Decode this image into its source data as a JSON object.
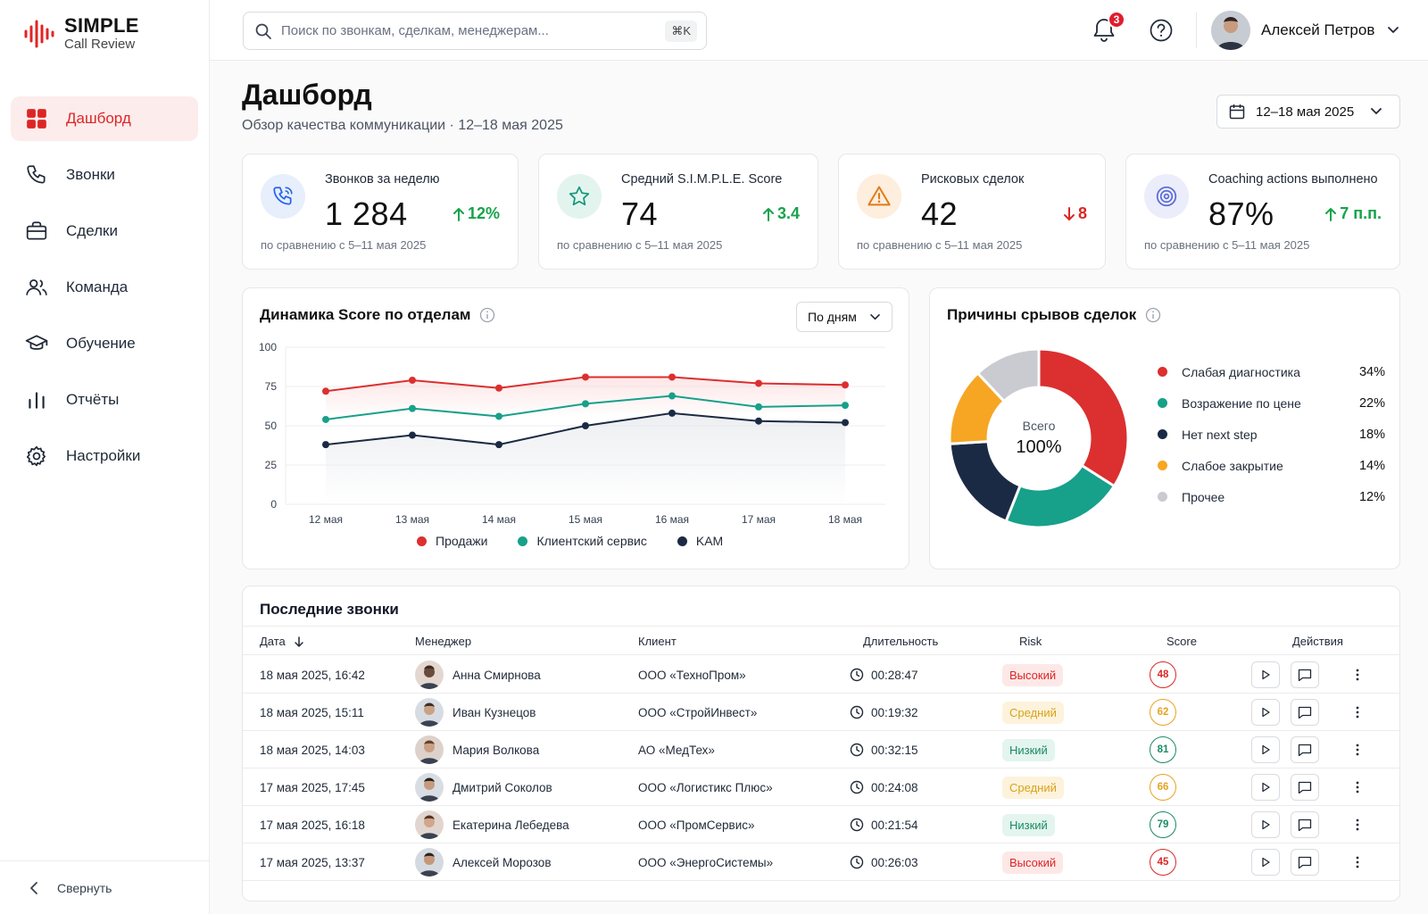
{
  "brand": {
    "name": "SIMPLE",
    "tagline": "Call Review"
  },
  "sidebar": {
    "items": [
      {
        "label": "Дашборд",
        "icon": "grid-icon",
        "active": true
      },
      {
        "label": "Звонки",
        "icon": "phone-icon"
      },
      {
        "label": "Сделки",
        "icon": "briefcase-icon"
      },
      {
        "label": "Команда",
        "icon": "team-icon"
      },
      {
        "label": "Обучение",
        "icon": "graduation-cap-icon"
      },
      {
        "label": "Отчёты",
        "icon": "bar-chart-icon"
      },
      {
        "label": "Настройки",
        "icon": "gear-icon"
      }
    ],
    "collapse_label": "Свернуть"
  },
  "topbar": {
    "search_placeholder": "Поиск по звонкам, сделкам, менеджерам...",
    "search_shortcut": "⌘K",
    "notifications_count": "3",
    "user_name": "Алексей Петров"
  },
  "page": {
    "title": "Дашборд",
    "subtitle": "Обзор качества коммуникации · 12–18 мая 2025",
    "date_range": "12–18 мая 2025"
  },
  "kpis": [
    {
      "label": "Звонков за неделю",
      "value": "1 284",
      "delta": "12%",
      "direction": "up",
      "compare": "по сравнению с 5–11 мая 2025",
      "icon": "phone-icon",
      "color": "#2563eb",
      "bg": "#e7effc"
    },
    {
      "label": "Средний S.I.M.P.L.E. Score",
      "value": "74",
      "delta": "3.4",
      "direction": "up",
      "compare": "по сравнению с 5–11 мая 2025",
      "icon": "star-icon",
      "color": "#16987a",
      "bg": "#e3f4ef"
    },
    {
      "label": "Рисковых сделок",
      "value": "42",
      "delta": "8",
      "direction": "down",
      "compare": "по сравнению с 5–11 мая 2025",
      "icon": "warning-icon",
      "color": "#e07b1a",
      "bg": "#fdeede"
    },
    {
      "label": "Coaching actions выполнено",
      "value": "87%",
      "delta": "7 п.п.",
      "direction": "up",
      "compare": "по сравнению с 5–11 мая 2025",
      "icon": "target-icon",
      "color": "#5b6bd6",
      "bg": "#ebedfa"
    }
  ],
  "line_panel": {
    "title": "Динамика Score по отделам",
    "period_label": "По дням"
  },
  "pie_panel": {
    "title": "Причины срывов сделок",
    "center_label": "Всего",
    "center_value": "100%"
  },
  "chart_data": [
    {
      "type": "line",
      "title": "Динамика Score по отделам",
      "x": [
        "12 мая",
        "13 мая",
        "14 мая",
        "15 мая",
        "16 мая",
        "17 мая",
        "18 мая"
      ],
      "ylim": [
        0,
        100
      ],
      "yticks": [
        0,
        25,
        50,
        75,
        100
      ],
      "grid": true,
      "legend": "bottom",
      "series": [
        {
          "name": "Продажи",
          "color": "#dc2f2f",
          "values": [
            72,
            79,
            74,
            81,
            81,
            77,
            76
          ]
        },
        {
          "name": "Клиентский сервис",
          "color": "#17a08a",
          "values": [
            54,
            61,
            56,
            64,
            69,
            62,
            63
          ]
        },
        {
          "name": "KAM",
          "color": "#1b2a44",
          "values": [
            38,
            44,
            38,
            50,
            58,
            53,
            52
          ]
        }
      ]
    },
    {
      "type": "pie",
      "title": "Причины срывов сделок",
      "legend": "right",
      "categories": [
        "Слабая диагностика",
        "Возражение по цене",
        "Нет next step",
        "Слабое закрытие",
        "Прочее"
      ],
      "values": [
        34,
        22,
        18,
        14,
        12
      ],
      "labels": [
        "34%",
        "22%",
        "18%",
        "14%",
        "12%"
      ],
      "colors": [
        "#dc2f2f",
        "#17a08a",
        "#1b2a44",
        "#f6a623",
        "#c9cbd0"
      ]
    }
  ],
  "table": {
    "title": "Последние звонки",
    "columns": [
      "Дата",
      "Менеджер",
      "Клиент",
      "Длительность",
      "Risk",
      "Score",
      "Действия"
    ],
    "rows": [
      {
        "date": "18 мая 2025, 16:42",
        "manager": "Анна Смирнова",
        "client": "ООО «ТехноПром»",
        "duration": "00:28:47",
        "risk": "Высокий",
        "risk_level": "high",
        "score": "48"
      },
      {
        "date": "18 мая 2025, 15:11",
        "manager": "Иван Кузнецов",
        "client": "ООО «СтройИнвест»",
        "duration": "00:19:32",
        "risk": "Средний",
        "risk_level": "mid",
        "score": "62"
      },
      {
        "date": "18 мая 2025, 14:03",
        "manager": "Мария Волкова",
        "client": "АО «МедТех»",
        "duration": "00:32:15",
        "risk": "Низкий",
        "risk_level": "low",
        "score": "81"
      },
      {
        "date": "17 мая 2025, 17:45",
        "manager": "Дмитрий Соколов",
        "client": "ООО «Логистикс Плюс»",
        "duration": "00:24:08",
        "risk": "Средний",
        "risk_level": "mid",
        "score": "66"
      },
      {
        "date": "17 мая 2025, 16:18",
        "manager": "Екатерина Лебедева",
        "client": "ООО «ПромСервис»",
        "duration": "00:21:54",
        "risk": "Низкий",
        "risk_level": "low",
        "score": "79"
      },
      {
        "date": "17 мая 2025, 13:37",
        "manager": "Алексей Морозов",
        "client": "ООО «ЭнергоСистемы»",
        "duration": "00:26:03",
        "risk": "Высокий",
        "risk_level": "high",
        "score": "45"
      }
    ]
  },
  "colors": {
    "accent": "#dc2626",
    "up": "#16a34a",
    "down": "#dc2626",
    "high": "#dc2626",
    "mid": "#e5a322",
    "low": "#1b8a63"
  }
}
